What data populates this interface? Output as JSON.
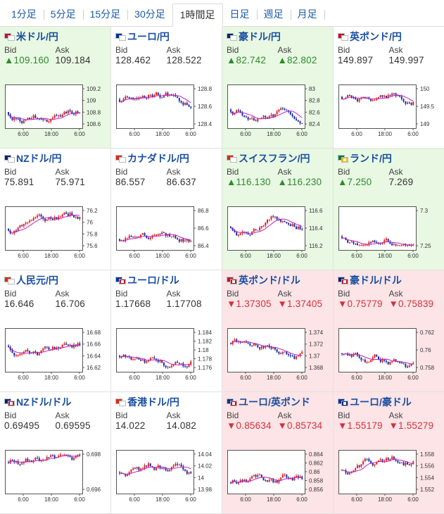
{
  "tabs": [
    {
      "label": "1分足",
      "active": false
    },
    {
      "label": "5分足",
      "active": false
    },
    {
      "label": "15分足",
      "active": false
    },
    {
      "label": "30分足",
      "active": false
    },
    {
      "label": "1時間足",
      "active": true
    },
    {
      "label": "日足",
      "active": false
    },
    {
      "label": "週足",
      "active": false
    },
    {
      "label": "月足",
      "active": false
    }
  ],
  "bid_label": "Bid",
  "ask_label": "Ask",
  "colors": {
    "up_bg": "#e8f8e2",
    "down_bg": "#fde4e6",
    "up_text": "#2e8a2e",
    "down_text": "#d3323c",
    "candle_up": "#e02020",
    "candle_down": "#1c2fa0",
    "ma_line": "#c020c0",
    "ma_line2": "#40b0d0"
  },
  "pairs": [
    {
      "name": "米ドル/円",
      "state": "up",
      "bid": "▲109.160",
      "ask": "109.184",
      "bid_state": "up",
      "ask_state": "flat",
      "flags": [
        "#c8102e",
        "#ffffff"
      ],
      "chart_data": {
        "type": "candlestick",
        "yticks": [
          "109.2",
          "109",
          "108.8",
          "108.6"
        ],
        "xticks": [
          "6:00",
          "18:00",
          "6:00"
        ]
      }
    },
    {
      "name": "ユーロ/円",
      "state": "flat",
      "bid": "128.462",
      "ask": "128.522",
      "bid_state": "flat",
      "ask_state": "flat",
      "flags": [
        "#003399",
        "#ffffff"
      ],
      "chart_data": {
        "type": "candlestick",
        "yticks": [
          "128.8",
          "128.6",
          "128.4"
        ],
        "xticks": [
          "6:00",
          "18:00",
          "6:00"
        ]
      }
    },
    {
      "name": "豪ドル/円",
      "state": "up",
      "bid": "▲82.742",
      "ask": "▲82.802",
      "bid_state": "up",
      "ask_state": "up",
      "flags": [
        "#00247d",
        "#ffffff"
      ],
      "chart_data": {
        "type": "candlestick",
        "yticks": [
          "83",
          "82.8",
          "82.6",
          "82.4"
        ],
        "xticks": [
          "6:00",
          "18:00",
          "6:00"
        ]
      }
    },
    {
      "name": "英ポンド/円",
      "state": "flat",
      "bid": "149.897",
      "ask": "149.997",
      "bid_state": "flat",
      "ask_state": "flat",
      "flags": [
        "#c8102e",
        "#ffffff"
      ],
      "chart_data": {
        "type": "candlestick",
        "yticks": [
          "150",
          "149.5",
          "149"
        ],
        "xticks": [
          "6:00",
          "18:00",
          "6:00"
        ]
      }
    },
    {
      "name": "NZドル/円",
      "state": "flat",
      "bid": "75.891",
      "ask": "75.971",
      "bid_state": "flat",
      "ask_state": "flat",
      "flags": [
        "#00247d",
        "#ffffff"
      ],
      "chart_data": {
        "type": "candlestick",
        "yticks": [
          "76.2",
          "76",
          "75.8",
          "75.6"
        ],
        "xticks": [
          "6:00",
          "18:00",
          "6:00"
        ]
      }
    },
    {
      "name": "カナダドル/円",
      "state": "flat",
      "bid": "86.557",
      "ask": "86.637",
      "bid_state": "flat",
      "ask_state": "flat",
      "flags": [
        "#d52b1e",
        "#ffffff"
      ],
      "chart_data": {
        "type": "candlestick",
        "yticks": [
          "86.8",
          "86.6",
          "86.4"
        ],
        "xticks": [
          "6:00",
          "18:00",
          "6:00"
        ]
      }
    },
    {
      "name": "スイスフラン/円",
      "state": "up",
      "bid": "▲116.130",
      "ask": "▲116.230",
      "bid_state": "up",
      "ask_state": "up",
      "flags": [
        "#d52b1e",
        "#ffffff"
      ],
      "chart_data": {
        "type": "candlestick",
        "yticks": [
          "116.6",
          "116.4",
          "116.2"
        ],
        "xticks": [
          "6:00",
          "18:00",
          "6:00"
        ]
      }
    },
    {
      "name": "ランド/円",
      "state": "up",
      "bid": "▲7.250",
      "ask": "7.269",
      "bid_state": "up",
      "ask_state": "flat",
      "flags": [
        "#007a4d",
        "#ffb612"
      ],
      "chart_data": {
        "type": "candlestick",
        "yticks": [
          "7.3",
          "7.25"
        ],
        "xticks": [
          "6:00",
          "18:00",
          "6:00"
        ]
      }
    },
    {
      "name": "人民元/円",
      "state": "flat",
      "bid": "16.646",
      "ask": "16.706",
      "bid_state": "flat",
      "ask_state": "flat",
      "flags": [
        "#de2910",
        "#ffffff"
      ],
      "chart_data": {
        "type": "candlestick",
        "yticks": [
          "16.68",
          "16.66",
          "16.64",
          "16.62"
        ],
        "xticks": [
          "6:00",
          "18:00",
          "6:00"
        ]
      }
    },
    {
      "name": "ユーロ/ドル",
      "state": "flat",
      "bid": "1.17668",
      "ask": "1.17708",
      "bid_state": "flat",
      "ask_state": "flat",
      "flags": [
        "#003399",
        "#b22234"
      ],
      "chart_data": {
        "type": "candlestick",
        "yticks": [
          "1.184",
          "1.182",
          "1.18",
          "1.178",
          "1.176"
        ],
        "xticks": [
          "6:00",
          "18:00",
          "6:00"
        ]
      }
    },
    {
      "name": "英ポンド/ドル",
      "state": "down",
      "bid": "▼1.37305",
      "ask": "▼1.37405",
      "bid_state": "down",
      "ask_state": "down",
      "flags": [
        "#c8102e",
        "#b22234"
      ],
      "chart_data": {
        "type": "candlestick",
        "yticks": [
          "1.374",
          "1.372",
          "1.37",
          "1.368"
        ],
        "xticks": [
          "6:00",
          "18:00",
          "6:00"
        ]
      }
    },
    {
      "name": "豪ドル/ドル",
      "state": "down",
      "bid": "▼0.75779",
      "ask": "▼0.75839",
      "bid_state": "down",
      "ask_state": "down",
      "flags": [
        "#00247d",
        "#b22234"
      ],
      "chart_data": {
        "type": "candlestick",
        "yticks": [
          "0.762",
          "0.76",
          "0.758"
        ],
        "xticks": [
          "6:00",
          "18:00",
          "6:00"
        ]
      }
    },
    {
      "name": "NZドル/ドル",
      "state": "flat",
      "bid": "0.69495",
      "ask": "0.69595",
      "bid_state": "flat",
      "ask_state": "flat",
      "flags": [
        "#00247d",
        "#b22234"
      ],
      "chart_data": {
        "type": "candlestick",
        "yticks": [
          "0.698",
          "0.696"
        ],
        "xticks": [
          "6:00",
          "18:00",
          "6:00"
        ]
      }
    },
    {
      "name": "香港ドル/円",
      "state": "flat",
      "bid": "14.022",
      "ask": "14.082",
      "bid_state": "flat",
      "ask_state": "flat",
      "flags": [
        "#de2910",
        "#ffffff"
      ],
      "chart_data": {
        "type": "candlestick",
        "yticks": [
          "14.04",
          "14.02",
          "14",
          "13.98"
        ],
        "xticks": [
          "6:00",
          "18:00",
          "6:00"
        ]
      }
    },
    {
      "name": "ユーロ/英ポンド",
      "state": "down",
      "bid": "▼0.85634",
      "ask": "▼0.85734",
      "bid_state": "down",
      "ask_state": "down",
      "flags": [
        "#003399",
        "#c8102e"
      ],
      "chart_data": {
        "type": "candlestick",
        "yticks": [
          "0.864",
          "0.862",
          "0.86",
          "0.858",
          "0.856"
        ],
        "xticks": [
          "6:00",
          "18:00",
          "6:00"
        ]
      }
    },
    {
      "name": "ユーロ/豪ドル",
      "state": "down",
      "bid": "▼1.55179",
      "ask": "▼1.55279",
      "bid_state": "down",
      "ask_state": "down",
      "flags": [
        "#003399",
        "#00247d"
      ],
      "chart_data": {
        "type": "candlestick",
        "yticks": [
          "1.558",
          "1.556",
          "1.554",
          "1.552"
        ],
        "xticks": [
          "6:00",
          "18:00",
          "6:00"
        ]
      }
    }
  ]
}
